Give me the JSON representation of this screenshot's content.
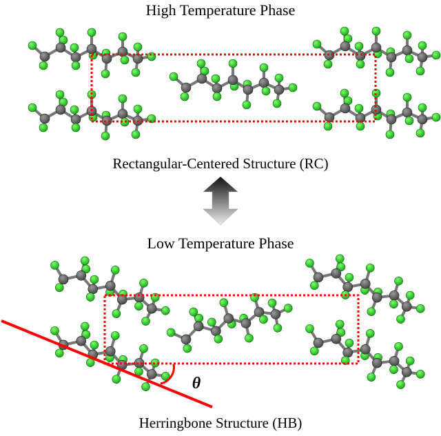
{
  "high_phase": {
    "title": "High Temperature Phase",
    "structure_label": "Rectangular-Centered Structure (RC)"
  },
  "low_phase": {
    "title": "Low Temperature Phase",
    "structure_label": "Herringbone Structure (HB)",
    "angle_symbol": "θ"
  },
  "colors": {
    "carbon": "#5e5e5e",
    "fluorine": "#22cc22",
    "unit_cell": "#ff0000",
    "tilt_line": "#ff0000"
  }
}
